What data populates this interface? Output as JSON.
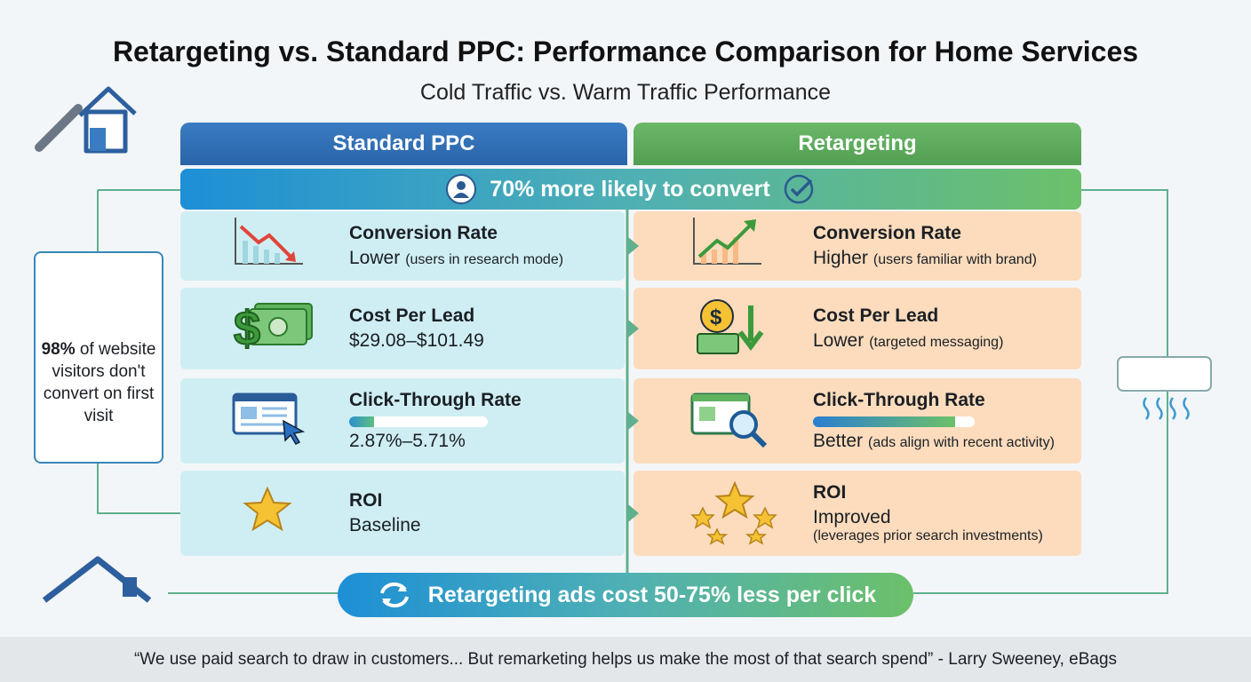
{
  "title": "Retargeting vs. Standard PPC: Performance Comparison for Home Services",
  "subtitle": "Cold Traffic vs. Warm Traffic Performance",
  "columns": [
    "Standard PPC",
    "Retargeting"
  ],
  "banner": "70% more likely to convert",
  "rows": [
    {
      "left": {
        "metric": "Conversion Rate",
        "value": "Lower",
        "note": "(users in research mode)"
      },
      "right": {
        "metric": "Conversion Rate",
        "value": "Higher",
        "note": "(users familiar with brand)"
      }
    },
    {
      "left": {
        "metric": "Cost Per Lead",
        "value": "$29.08–$101.49"
      },
      "right": {
        "metric": "Cost Per Lead",
        "value": "Lower",
        "note": "(targeted messaging)"
      }
    },
    {
      "left": {
        "metric": "Click-Through Rate",
        "value": "2.87%–5.71%"
      },
      "right": {
        "metric": "Click-Through Rate",
        "value": "Better",
        "note": "(ads align with recent activity)"
      }
    },
    {
      "left": {
        "metric": "ROI",
        "value": "Baseline"
      },
      "right": {
        "metric": "ROI",
        "value": "Improved",
        "note": "(leverages prior search investments)"
      }
    }
  ],
  "side_note": {
    "stat": "98%",
    "text": "of website visitors don't convert on first visit"
  },
  "bottom_banner": "Retargeting ads cost 50-75% less per click",
  "quote": "“We use paid search to draw in customers... But remarketing helps us make the most of that search spend” - Larry Sweeney, eBags"
}
